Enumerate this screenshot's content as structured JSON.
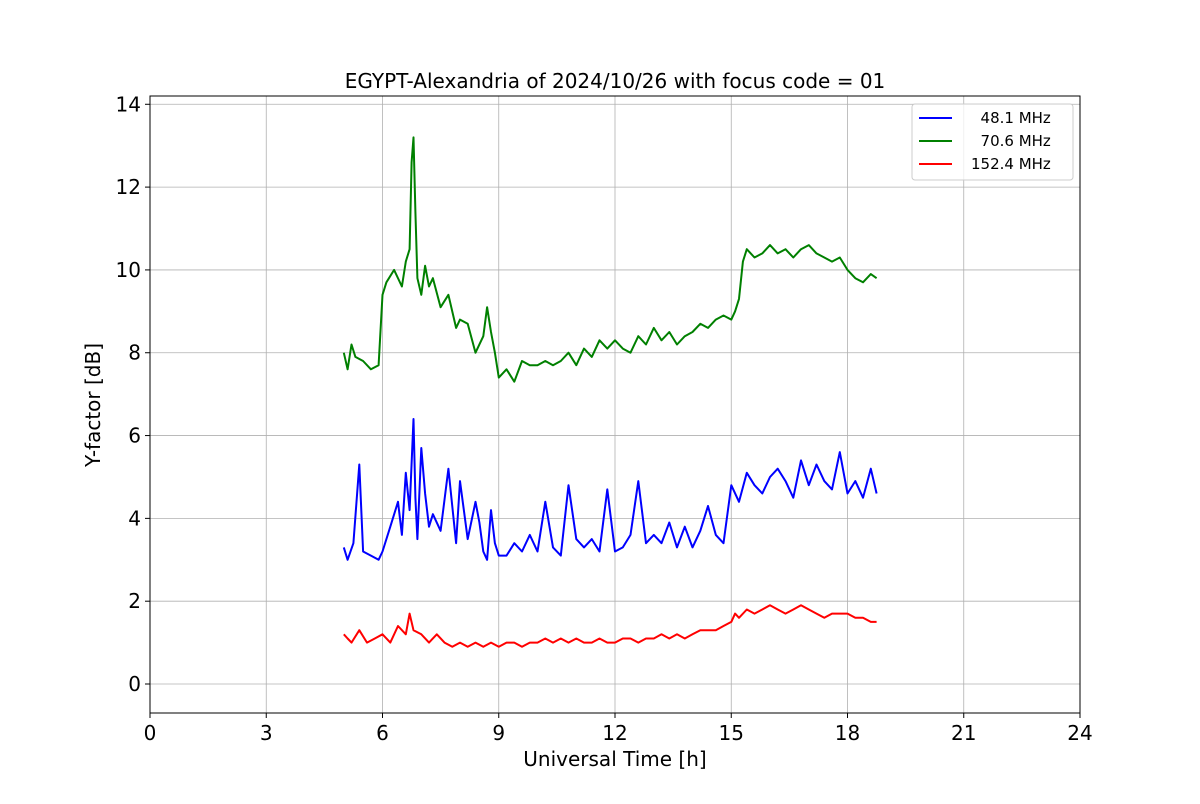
{
  "chart_data": {
    "type": "line",
    "title": "EGYPT-Alexandria of 2024/10/26 with focus code = 01",
    "xlabel": "Universal Time [h]",
    "ylabel": "Y-factor [dB]",
    "xlim": [
      0,
      24
    ],
    "ylim": [
      -0.7,
      14.2
    ],
    "xticks": [
      0,
      3,
      6,
      9,
      12,
      15,
      18,
      21,
      24
    ],
    "yticks": [
      0,
      2,
      4,
      6,
      8,
      10,
      12,
      14
    ],
    "grid": true,
    "legend_position": "top-right",
    "series": [
      {
        "name": "  48.1 MHz",
        "color": "#0000ff",
        "x": [
          5.0,
          5.1,
          5.25,
          5.4,
          5.5,
          5.7,
          5.9,
          6.0,
          6.2,
          6.4,
          6.5,
          6.6,
          6.7,
          6.8,
          6.85,
          6.9,
          7.0,
          7.1,
          7.2,
          7.3,
          7.5,
          7.7,
          7.9,
          8.0,
          8.2,
          8.4,
          8.5,
          8.6,
          8.7,
          8.8,
          8.9,
          9.0,
          9.2,
          9.4,
          9.6,
          9.8,
          10.0,
          10.2,
          10.4,
          10.6,
          10.8,
          11.0,
          11.2,
          11.4,
          11.6,
          11.8,
          12.0,
          12.2,
          12.4,
          12.6,
          12.8,
          13.0,
          13.2,
          13.4,
          13.6,
          13.8,
          14.0,
          14.2,
          14.4,
          14.6,
          14.8,
          15.0,
          15.2,
          15.4,
          15.6,
          15.8,
          16.0,
          16.2,
          16.4,
          16.6,
          16.8,
          17.0,
          17.2,
          17.4,
          17.6,
          17.8,
          18.0,
          18.2,
          18.4,
          18.6,
          18.75
        ],
        "values": [
          3.3,
          3.0,
          3.4,
          5.3,
          3.2,
          3.1,
          3.0,
          3.2,
          3.8,
          4.4,
          3.6,
          5.1,
          4.2,
          6.4,
          4.5,
          3.5,
          5.7,
          4.6,
          3.8,
          4.1,
          3.7,
          5.2,
          3.4,
          4.9,
          3.5,
          4.4,
          3.9,
          3.2,
          3.0,
          4.2,
          3.4,
          3.1,
          3.1,
          3.4,
          3.2,
          3.6,
          3.2,
          4.4,
          3.3,
          3.1,
          4.8,
          3.5,
          3.3,
          3.5,
          3.2,
          4.7,
          3.2,
          3.3,
          3.6,
          4.9,
          3.4,
          3.6,
          3.4,
          3.9,
          3.3,
          3.8,
          3.3,
          3.7,
          4.3,
          3.6,
          3.4,
          4.8,
          4.4,
          5.1,
          4.8,
          4.6,
          5.0,
          5.2,
          4.9,
          4.5,
          5.4,
          4.8,
          5.3,
          4.9,
          4.7,
          5.6,
          4.6,
          4.9,
          4.5,
          5.2,
          4.6
        ]
      },
      {
        "name": "  70.6 MHz",
        "color": "#008000",
        "x": [
          5.0,
          5.1,
          5.2,
          5.3,
          5.5,
          5.7,
          5.9,
          6.0,
          6.1,
          6.3,
          6.5,
          6.6,
          6.7,
          6.75,
          6.8,
          6.85,
          6.9,
          7.0,
          7.1,
          7.2,
          7.3,
          7.5,
          7.7,
          7.9,
          8.0,
          8.2,
          8.4,
          8.6,
          8.7,
          8.8,
          8.9,
          9.0,
          9.2,
          9.4,
          9.6,
          9.8,
          10.0,
          10.2,
          10.4,
          10.6,
          10.8,
          11.0,
          11.2,
          11.4,
          11.6,
          11.8,
          12.0,
          12.2,
          12.4,
          12.6,
          12.8,
          13.0,
          13.2,
          13.4,
          13.6,
          13.8,
          14.0,
          14.2,
          14.4,
          14.6,
          14.8,
          15.0,
          15.1,
          15.2,
          15.3,
          15.4,
          15.6,
          15.8,
          16.0,
          16.2,
          16.4,
          16.6,
          16.8,
          17.0,
          17.2,
          17.4,
          17.6,
          17.8,
          18.0,
          18.2,
          18.4,
          18.6,
          18.75
        ],
        "values": [
          8.0,
          7.6,
          8.2,
          7.9,
          7.8,
          7.6,
          7.7,
          9.4,
          9.7,
          10.0,
          9.6,
          10.2,
          10.5,
          12.6,
          13.2,
          11.4,
          9.8,
          9.4,
          10.1,
          9.6,
          9.8,
          9.1,
          9.4,
          8.6,
          8.8,
          8.7,
          8.0,
          8.4,
          9.1,
          8.5,
          8.0,
          7.4,
          7.6,
          7.3,
          7.8,
          7.7,
          7.7,
          7.8,
          7.7,
          7.8,
          8.0,
          7.7,
          8.1,
          7.9,
          8.3,
          8.1,
          8.3,
          8.1,
          8.0,
          8.4,
          8.2,
          8.6,
          8.3,
          8.5,
          8.2,
          8.4,
          8.5,
          8.7,
          8.6,
          8.8,
          8.9,
          8.8,
          9.0,
          9.3,
          10.2,
          10.5,
          10.3,
          10.4,
          10.6,
          10.4,
          10.5,
          10.3,
          10.5,
          10.6,
          10.4,
          10.3,
          10.2,
          10.3,
          10.0,
          9.8,
          9.7,
          9.9,
          9.8
        ]
      },
      {
        "name": "152.4 MHz",
        "color": "#ff0000",
        "x": [
          5.0,
          5.1,
          5.2,
          5.4,
          5.6,
          5.8,
          6.0,
          6.2,
          6.4,
          6.6,
          6.7,
          6.8,
          7.0,
          7.2,
          7.4,
          7.6,
          7.8,
          8.0,
          8.2,
          8.4,
          8.6,
          8.8,
          9.0,
          9.2,
          9.4,
          9.6,
          9.8,
          10.0,
          10.2,
          10.4,
          10.6,
          10.8,
          11.0,
          11.2,
          11.4,
          11.6,
          11.8,
          12.0,
          12.2,
          12.4,
          12.6,
          12.8,
          13.0,
          13.2,
          13.4,
          13.6,
          13.8,
          14.0,
          14.2,
          14.4,
          14.6,
          14.8,
          15.0,
          15.1,
          15.2,
          15.4,
          15.6,
          15.8,
          16.0,
          16.2,
          16.4,
          16.6,
          16.8,
          17.0,
          17.2,
          17.4,
          17.6,
          17.8,
          18.0,
          18.2,
          18.4,
          18.6,
          18.75
        ],
        "values": [
          1.2,
          1.1,
          1.0,
          1.3,
          1.0,
          1.1,
          1.2,
          1.0,
          1.4,
          1.2,
          1.7,
          1.3,
          1.2,
          1.0,
          1.2,
          1.0,
          0.9,
          1.0,
          0.9,
          1.0,
          0.9,
          1.0,
          0.9,
          1.0,
          1.0,
          0.9,
          1.0,
          1.0,
          1.1,
          1.0,
          1.1,
          1.0,
          1.1,
          1.0,
          1.0,
          1.1,
          1.0,
          1.0,
          1.1,
          1.1,
          1.0,
          1.1,
          1.1,
          1.2,
          1.1,
          1.2,
          1.1,
          1.2,
          1.3,
          1.3,
          1.3,
          1.4,
          1.5,
          1.7,
          1.6,
          1.8,
          1.7,
          1.8,
          1.9,
          1.8,
          1.7,
          1.8,
          1.9,
          1.8,
          1.7,
          1.6,
          1.7,
          1.7,
          1.7,
          1.6,
          1.6,
          1.5,
          1.5
        ]
      }
    ]
  }
}
